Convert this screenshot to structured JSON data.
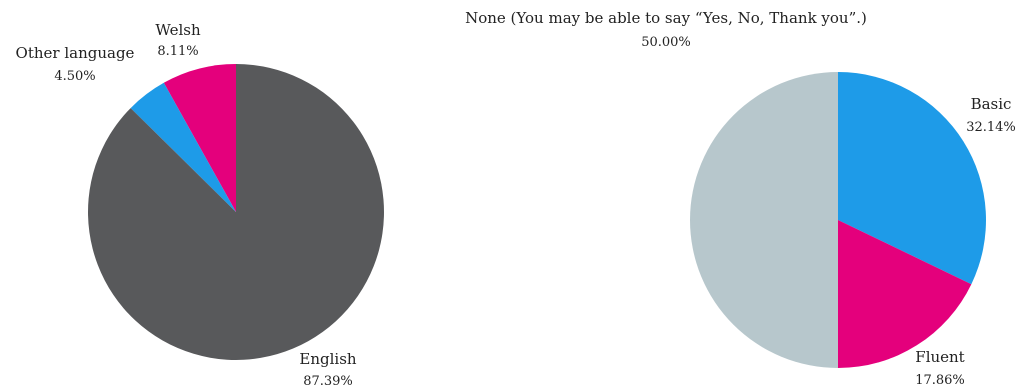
{
  "chart_data": [
    {
      "type": "pie",
      "start_angle_deg": 0,
      "direction": "counterclockwise",
      "slices": [
        {
          "name": "Welsh",
          "value": 8.11,
          "label": "8.11%",
          "color": "#e4007c"
        },
        {
          "name": "Other language",
          "value": 4.5,
          "label": "4.50%",
          "color": "#1e9be8"
        },
        {
          "name": "English",
          "value": 87.39,
          "label": "87.39%",
          "color": "#58595b"
        }
      ]
    },
    {
      "type": "pie",
      "start_angle_deg": 0,
      "direction": "clockwise",
      "slices": [
        {
          "name": "Basic",
          "value": 32.14,
          "label": "32.14%",
          "color": "#1e9be8"
        },
        {
          "name": "Fluent",
          "value": 17.86,
          "label": "17.86%",
          "color": "#e4007c"
        },
        {
          "name": "None (You may be able to say “Yes, No, Thank you”.)",
          "value": 50.0,
          "label": "50.00%",
          "color": "#b7c7cc"
        }
      ]
    }
  ]
}
